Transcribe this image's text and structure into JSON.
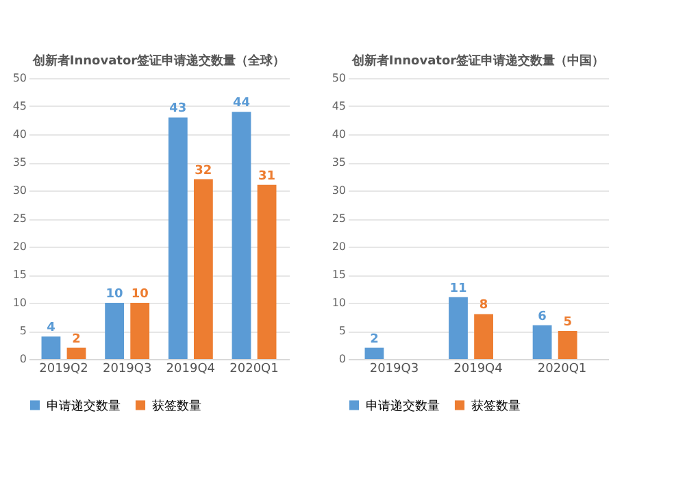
{
  "chart_data": [
    {
      "type": "bar",
      "title": "创新者Innovator签证申请递交数量（全球）",
      "categories": [
        "2019Q2",
        "2019Q3",
        "2019Q4",
        "2020Q1"
      ],
      "series": [
        {
          "name": "申请递交数量",
          "color": "#5b9bd5",
          "values": [
            4,
            10,
            43,
            44
          ]
        },
        {
          "name": "获签数量",
          "color": "#ed7d31",
          "values": [
            2,
            10,
            32,
            31
          ]
        }
      ],
      "ylim": [
        0,
        50
      ],
      "yticks": [
        0,
        5,
        10,
        15,
        20,
        25,
        30,
        35,
        40,
        45,
        50
      ],
      "grid": "y",
      "legend": "bottom",
      "data_labels": true
    },
    {
      "type": "bar",
      "title": "创新者Innovator签证申请递交数量（中国）",
      "categories": [
        "2019Q3",
        "2019Q4",
        "2020Q1"
      ],
      "series": [
        {
          "name": "申请递交数量",
          "color": "#5b9bd5",
          "values": [
            2,
            11,
            6
          ]
        },
        {
          "name": "获签数量",
          "color": "#ed7d31",
          "values": [
            null,
            8,
            5
          ]
        }
      ],
      "ylim": [
        0,
        50
      ],
      "yticks": [
        0,
        5,
        10,
        15,
        20,
        25,
        30,
        35,
        40,
        45,
        50
      ],
      "grid": "y",
      "legend": "bottom",
      "data_labels": true
    }
  ]
}
